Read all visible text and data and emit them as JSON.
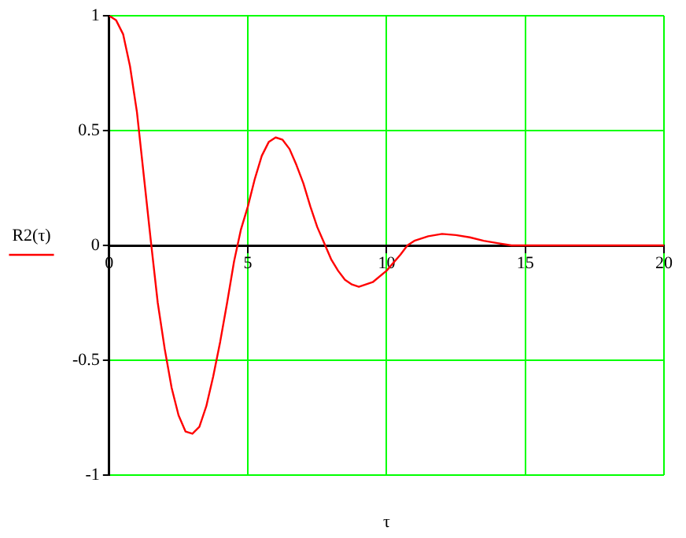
{
  "chart_data": {
    "type": "line",
    "xlabel": "τ",
    "ylabel": "R2(τ)",
    "x": [
      0,
      0.25,
      0.5,
      0.75,
      1,
      1.25,
      1.5,
      1.75,
      2,
      2.25,
      2.5,
      2.75,
      3,
      3.25,
      3.5,
      3.75,
      4,
      4.25,
      4.5,
      4.75,
      5,
      5.25,
      5.5,
      5.75,
      6,
      6.25,
      6.5,
      6.75,
      7,
      7.25,
      7.5,
      7.75,
      8,
      8.25,
      8.5,
      8.75,
      9,
      9.5,
      10,
      10.5,
      10.75,
      11,
      11.5,
      12,
      12.5,
      13,
      13.5,
      14,
      14.5,
      15,
      15.5,
      16,
      17,
      18,
      19,
      20
    ],
    "series": [
      {
        "color": "#ff0000",
        "values": [
          1,
          0.98,
          0.92,
          0.78,
          0.58,
          0.3,
          0.02,
          -0.25,
          -0.45,
          -0.62,
          -0.74,
          -0.81,
          -0.82,
          -0.79,
          -0.7,
          -0.57,
          -0.42,
          -0.25,
          -0.07,
          0.07,
          0.17,
          0.29,
          0.39,
          0.45,
          0.47,
          0.46,
          0.42,
          0.35,
          0.27,
          0.17,
          0.08,
          0.01,
          -0.06,
          -0.11,
          -0.15,
          -0.17,
          -0.18,
          -0.16,
          -0.11,
          -0.04,
          0,
          0.02,
          0.04,
          0.05,
          0.045,
          0.035,
          0.02,
          0.01,
          0,
          0,
          0,
          0,
          0,
          0,
          0,
          0
        ]
      }
    ],
    "xlim": [
      0,
      20
    ],
    "xticks": [
      0,
      5,
      10,
      15,
      20
    ],
    "ylim": [
      -1,
      1
    ],
    "yticks": [
      -1,
      -0.5,
      0,
      0.5,
      1
    ],
    "grid": true,
    "marker": "none",
    "line_style": "solid"
  }
}
